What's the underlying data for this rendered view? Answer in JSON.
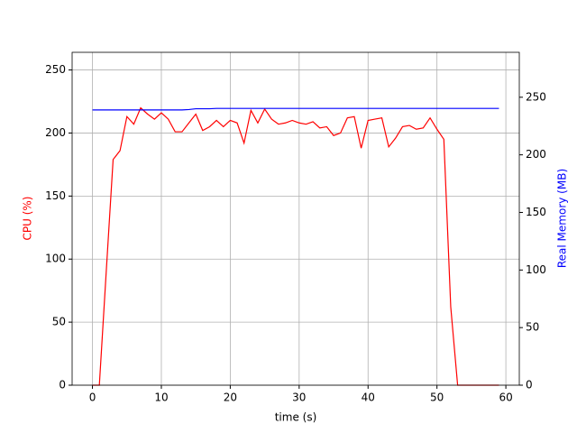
{
  "chart_data": {
    "type": "line",
    "x": [
      0,
      1,
      2,
      3,
      4,
      5,
      6,
      7,
      8,
      9,
      10,
      11,
      12,
      13,
      14,
      15,
      16,
      17,
      18,
      19,
      20,
      21,
      22,
      23,
      24,
      25,
      26,
      27,
      28,
      29,
      30,
      31,
      32,
      33,
      34,
      35,
      36,
      37,
      38,
      39,
      40,
      41,
      42,
      43,
      44,
      45,
      46,
      47,
      48,
      49,
      50,
      51,
      52,
      53,
      54,
      55,
      56,
      57,
      58,
      59
    ],
    "x_label": "time (s)",
    "y_label": "CPU (%)",
    "y2_label": "Real Memory (MB)",
    "series": [
      {
        "name": "CPU (%)",
        "color": "#ff0000",
        "axis": "y",
        "values": [
          0,
          0,
          90,
          179,
          186,
          213,
          207,
          220,
          215,
          211,
          216,
          211,
          201,
          201,
          208,
          215,
          202,
          205,
          210,
          205,
          210,
          208,
          192,
          218,
          208,
          219,
          211,
          207,
          208,
          210,
          208,
          207,
          209,
          204,
          205,
          198,
          200,
          212,
          213,
          188,
          210,
          211,
          212,
          189,
          196,
          205,
          206,
          203,
          204,
          212,
          203,
          195,
          62,
          0,
          0,
          0,
          0,
          0,
          0,
          0
        ]
      },
      {
        "name": "Real Memory (MB)",
        "color": "#0000ff",
        "axis": "y2",
        "values": [
          239,
          239,
          239,
          239,
          239,
          239,
          239,
          239,
          239,
          239,
          239,
          239,
          239,
          239,
          239.3,
          240,
          240,
          240,
          240.3,
          240.3,
          240.3,
          240.3,
          240.3,
          240.3,
          240.3,
          240.3,
          240.3,
          240.3,
          240.3,
          240.3,
          240.3,
          240.3,
          240.3,
          240.3,
          240.3,
          240.3,
          240.3,
          240.3,
          240.3,
          240.3,
          240.3,
          240.3,
          240.3,
          240.3,
          240.3,
          240.3,
          240.3,
          240.3,
          240.3,
          240.3,
          240.3,
          240.3,
          240.3,
          240.3,
          240.3,
          240.3,
          240.3,
          240.3,
          240.3,
          240.3
        ]
      }
    ],
    "xlim": [
      -2.95,
      61.95
    ],
    "xticks": [
      0,
      10,
      20,
      30,
      40,
      50,
      60
    ],
    "ylim": [
      0,
      264
    ],
    "yticks": [
      0,
      50,
      100,
      150,
      200,
      250
    ],
    "y2lim": [
      0,
      289
    ],
    "y2ticks": [
      0,
      50,
      100,
      150,
      200,
      250
    ],
    "grid": true
  }
}
